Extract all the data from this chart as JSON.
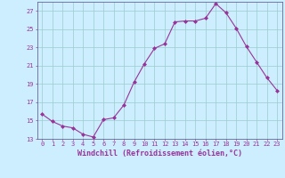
{
  "x": [
    0,
    1,
    2,
    3,
    4,
    5,
    6,
    7,
    8,
    9,
    10,
    11,
    12,
    13,
    14,
    15,
    16,
    17,
    18,
    19,
    20,
    21,
    22,
    23
  ],
  "y": [
    15.7,
    14.9,
    14.4,
    14.2,
    13.5,
    13.2,
    15.1,
    15.3,
    16.7,
    19.2,
    21.2,
    22.9,
    23.4,
    25.8,
    25.9,
    25.9,
    26.2,
    27.8,
    26.8,
    25.1,
    23.1,
    21.4,
    19.7,
    18.3
  ],
  "line_color": "#993399",
  "marker": "D",
  "marker_size": 2.0,
  "bg_color": "#cceeff",
  "grid_color": "#99cccc",
  "xlabel": "Windchill (Refroidissement éolien,°C)",
  "ylim": [
    13,
    28
  ],
  "xlim": [
    -0.5,
    23.5
  ],
  "yticks": [
    13,
    15,
    17,
    19,
    21,
    23,
    25,
    27
  ],
  "xticks": [
    0,
    1,
    2,
    3,
    4,
    5,
    6,
    7,
    8,
    9,
    10,
    11,
    12,
    13,
    14,
    15,
    16,
    17,
    18,
    19,
    20,
    21,
    22,
    23
  ],
  "tick_color": "#993399",
  "tick_fontsize": 5.0,
  "xlabel_fontsize": 6.0,
  "spine_color": "#666699",
  "linewidth": 0.8
}
